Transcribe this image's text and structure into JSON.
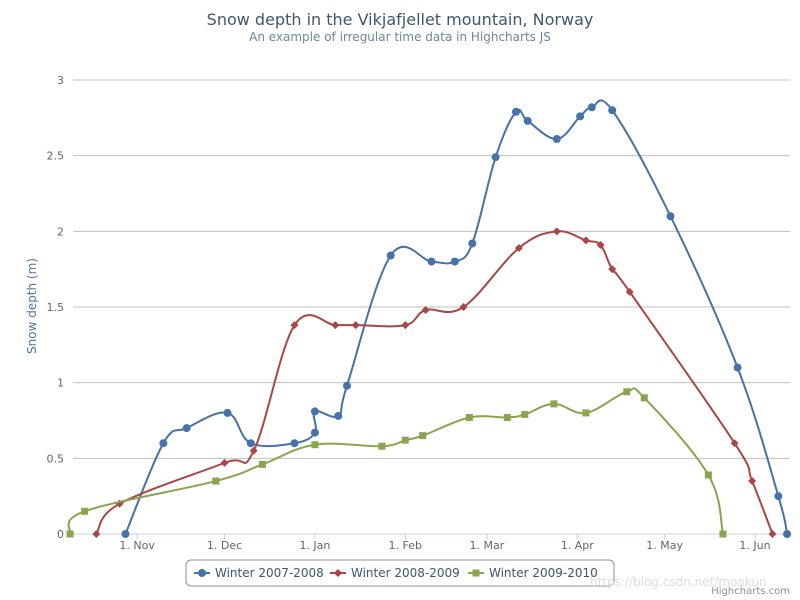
{
  "chart_data": {
    "type": "line",
    "title": "Snow depth in the Vikjafjellet mountain, Norway",
    "subtitle": "An example of irregular time data in Highcharts JS",
    "ylabel": "Snow depth (m)",
    "xlabel": "",
    "ylim": [
      0,
      3
    ],
    "y_ticks": [
      "0",
      "0.5",
      "1",
      "1.5",
      "2",
      "2.5",
      "3"
    ],
    "x_range": [
      "1970-10-10",
      "1971-06-13"
    ],
    "x_ticks": [
      {
        "date": "1970-11-01",
        "label": "1. Nov"
      },
      {
        "date": "1970-12-01",
        "label": "1. Dec"
      },
      {
        "date": "1971-01-01",
        "label": "1. Jan"
      },
      {
        "date": "1971-02-01",
        "label": "1. Feb"
      },
      {
        "date": "1971-03-01",
        "label": "1. Mar"
      },
      {
        "date": "1971-04-01",
        "label": "1. Apr"
      },
      {
        "date": "1971-05-01",
        "label": "1. May"
      },
      {
        "date": "1971-06-01",
        "label": "1. Jun"
      }
    ],
    "grid": true,
    "legend_position": "bottom",
    "series": [
      {
        "name": "Winter 2007-2008",
        "color": "#4572A7",
        "marker": "circle",
        "points": [
          [
            "1970-10-28",
            0
          ],
          [
            "1970-11-10",
            0.6
          ],
          [
            "1970-11-18",
            0.7
          ],
          [
            "1970-12-02",
            0.8
          ],
          [
            "1970-12-10",
            0.6
          ],
          [
            "1970-12-25",
            0.6
          ],
          [
            "1971-01-01",
            0.67
          ],
          [
            "1971-01-01",
            0.81
          ],
          [
            "1971-01-09",
            0.78
          ],
          [
            "1971-01-12",
            0.98
          ],
          [
            "1971-01-27",
            1.84
          ],
          [
            "1971-02-10",
            1.8
          ],
          [
            "1971-02-18",
            1.8
          ],
          [
            "1971-02-24",
            1.92
          ],
          [
            "1971-03-04",
            2.49
          ],
          [
            "1971-03-11",
            2.79
          ],
          [
            "1971-03-15",
            2.73
          ],
          [
            "1971-03-25",
            2.61
          ],
          [
            "1971-04-02",
            2.76
          ],
          [
            "1971-04-06",
            2.82
          ],
          [
            "1971-04-13",
            2.8
          ],
          [
            "1971-05-03",
            2.1
          ],
          [
            "1971-05-26",
            1.1
          ],
          [
            "1971-06-09",
            0.25
          ],
          [
            "1971-06-12",
            0
          ]
        ]
      },
      {
        "name": "Winter 2008-2009",
        "color": "#AA4643",
        "marker": "diamond",
        "points": [
          [
            "1970-10-18",
            0
          ],
          [
            "1970-10-26",
            0.2
          ],
          [
            "1970-12-01",
            0.47
          ],
          [
            "1970-12-11",
            0.55
          ],
          [
            "1970-12-25",
            1.38
          ],
          [
            "1971-01-08",
            1.38
          ],
          [
            "1971-01-15",
            1.38
          ],
          [
            "1971-02-01",
            1.38
          ],
          [
            "1971-02-08",
            1.48
          ],
          [
            "1971-02-21",
            1.5
          ],
          [
            "1971-03-12",
            1.89
          ],
          [
            "1971-03-25",
            2.0
          ],
          [
            "1971-04-04",
            1.94
          ],
          [
            "1971-04-09",
            1.91
          ],
          [
            "1971-04-13",
            1.75
          ],
          [
            "1971-04-19",
            1.6
          ],
          [
            "1971-05-25",
            0.6
          ],
          [
            "1971-05-31",
            0.35
          ],
          [
            "1971-06-07",
            0
          ]
        ]
      },
      {
        "name": "Winter 2009-2010",
        "color": "#89A54E",
        "marker": "square",
        "points": [
          [
            "1970-10-09",
            0
          ],
          [
            "1970-10-14",
            0.15
          ],
          [
            "1970-11-28",
            0.35
          ],
          [
            "1970-12-14",
            0.46
          ],
          [
            "1971-01-01",
            0.59
          ],
          [
            "1971-01-24",
            0.58
          ],
          [
            "1971-02-01",
            0.62
          ],
          [
            "1971-02-07",
            0.65
          ],
          [
            "1971-02-23",
            0.77
          ],
          [
            "1971-03-08",
            0.77
          ],
          [
            "1971-03-14",
            0.79
          ],
          [
            "1971-03-24",
            0.86
          ],
          [
            "1971-04-04",
            0.8
          ],
          [
            "1971-04-18",
            0.94
          ],
          [
            "1971-04-24",
            0.9
          ],
          [
            "1971-05-16",
            0.39
          ],
          [
            "1971-05-21",
            0
          ]
        ]
      }
    ]
  },
  "credits": "Highcharts.com",
  "watermark": "https://blog.csdn.net/moakun"
}
